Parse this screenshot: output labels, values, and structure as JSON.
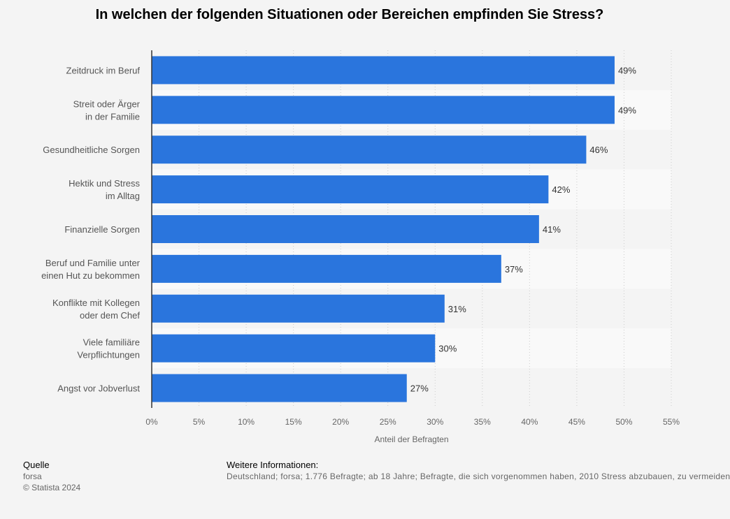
{
  "chart_data": {
    "type": "bar",
    "orientation": "horizontal",
    "title": "In welchen der folgenden Situationen oder Bereichen empfinden Sie Stress?",
    "categories": [
      [
        "Zeitdruck im Beruf"
      ],
      [
        "Streit oder Ärger",
        "in der Familie"
      ],
      [
        "Gesundheitliche Sorgen"
      ],
      [
        "Hektik und Stress",
        "im Alltag"
      ],
      [
        "Finanzielle Sorgen"
      ],
      [
        "Beruf und Familie unter",
        "einen Hut zu bekommen"
      ],
      [
        "Konflikte mit Kollegen",
        "oder dem Chef"
      ],
      [
        "Viele familiäre",
        "Verpflichtungen"
      ],
      [
        "Angst vor Jobverlust"
      ]
    ],
    "values": [
      49,
      49,
      46,
      42,
      41,
      37,
      31,
      30,
      27
    ],
    "value_labels": [
      "49%",
      "49%",
      "46%",
      "42%",
      "41%",
      "37%",
      "31%",
      "30%",
      "27%"
    ],
    "xlim": [
      0,
      55
    ],
    "xticks": [
      0,
      5,
      10,
      15,
      20,
      25,
      30,
      35,
      40,
      45,
      50,
      55
    ],
    "xtick_labels": [
      "0%",
      "5%",
      "10%",
      "15%",
      "20%",
      "25%",
      "30%",
      "35%",
      "40%",
      "45%",
      "50%",
      "55%"
    ],
    "xlabel": "Anteil der Befragten",
    "grid": true,
    "bar_color": "#2a75dd"
  },
  "footer": {
    "source_heading": "Quelle",
    "source": "forsa",
    "copyright": "© Statista 2024",
    "info_heading": "Weitere Informationen:",
    "info": "Deutschland; forsa; 1.776 Befragte; ab 18 Jahre; Befragte, die sich vorgenommen haben, 2010 Stress abzubauen, zu vermeiden"
  }
}
